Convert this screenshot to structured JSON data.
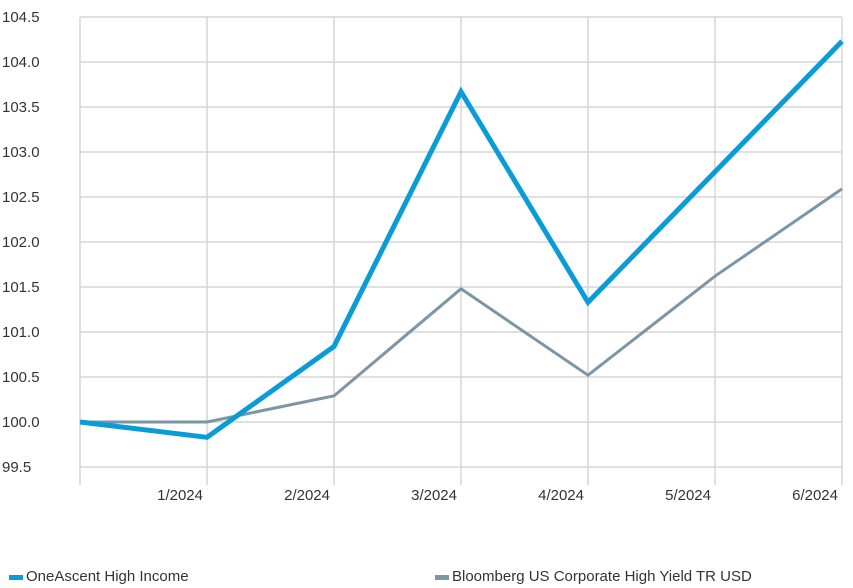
{
  "chart_data": {
    "type": "line",
    "x": [
      "",
      "1/2024",
      "2/2024",
      "3/2024",
      "4/2024",
      "5/2024",
      "6/2024"
    ],
    "series": [
      {
        "name": "OneAscent High Income",
        "color": "#0A9BD9",
        "values": [
          100.0,
          99.83,
          100.84,
          103.67,
          101.33,
          102.78,
          104.23
        ]
      },
      {
        "name": "Bloomberg US Corporate High Yield TR USD",
        "color": "#7C96A5",
        "values": [
          100.0,
          100.0,
          100.29,
          101.48,
          100.52,
          101.62,
          102.59
        ]
      }
    ],
    "yticks": [
      "99.5",
      "100.0",
      "100.5",
      "101.0",
      "101.5",
      "102.0",
      "102.5",
      "103.0",
      "103.5",
      "104.0",
      "104.5"
    ],
    "ylim": [
      99.5,
      104.5
    ],
    "grid": true,
    "legend_position": "bottom"
  }
}
